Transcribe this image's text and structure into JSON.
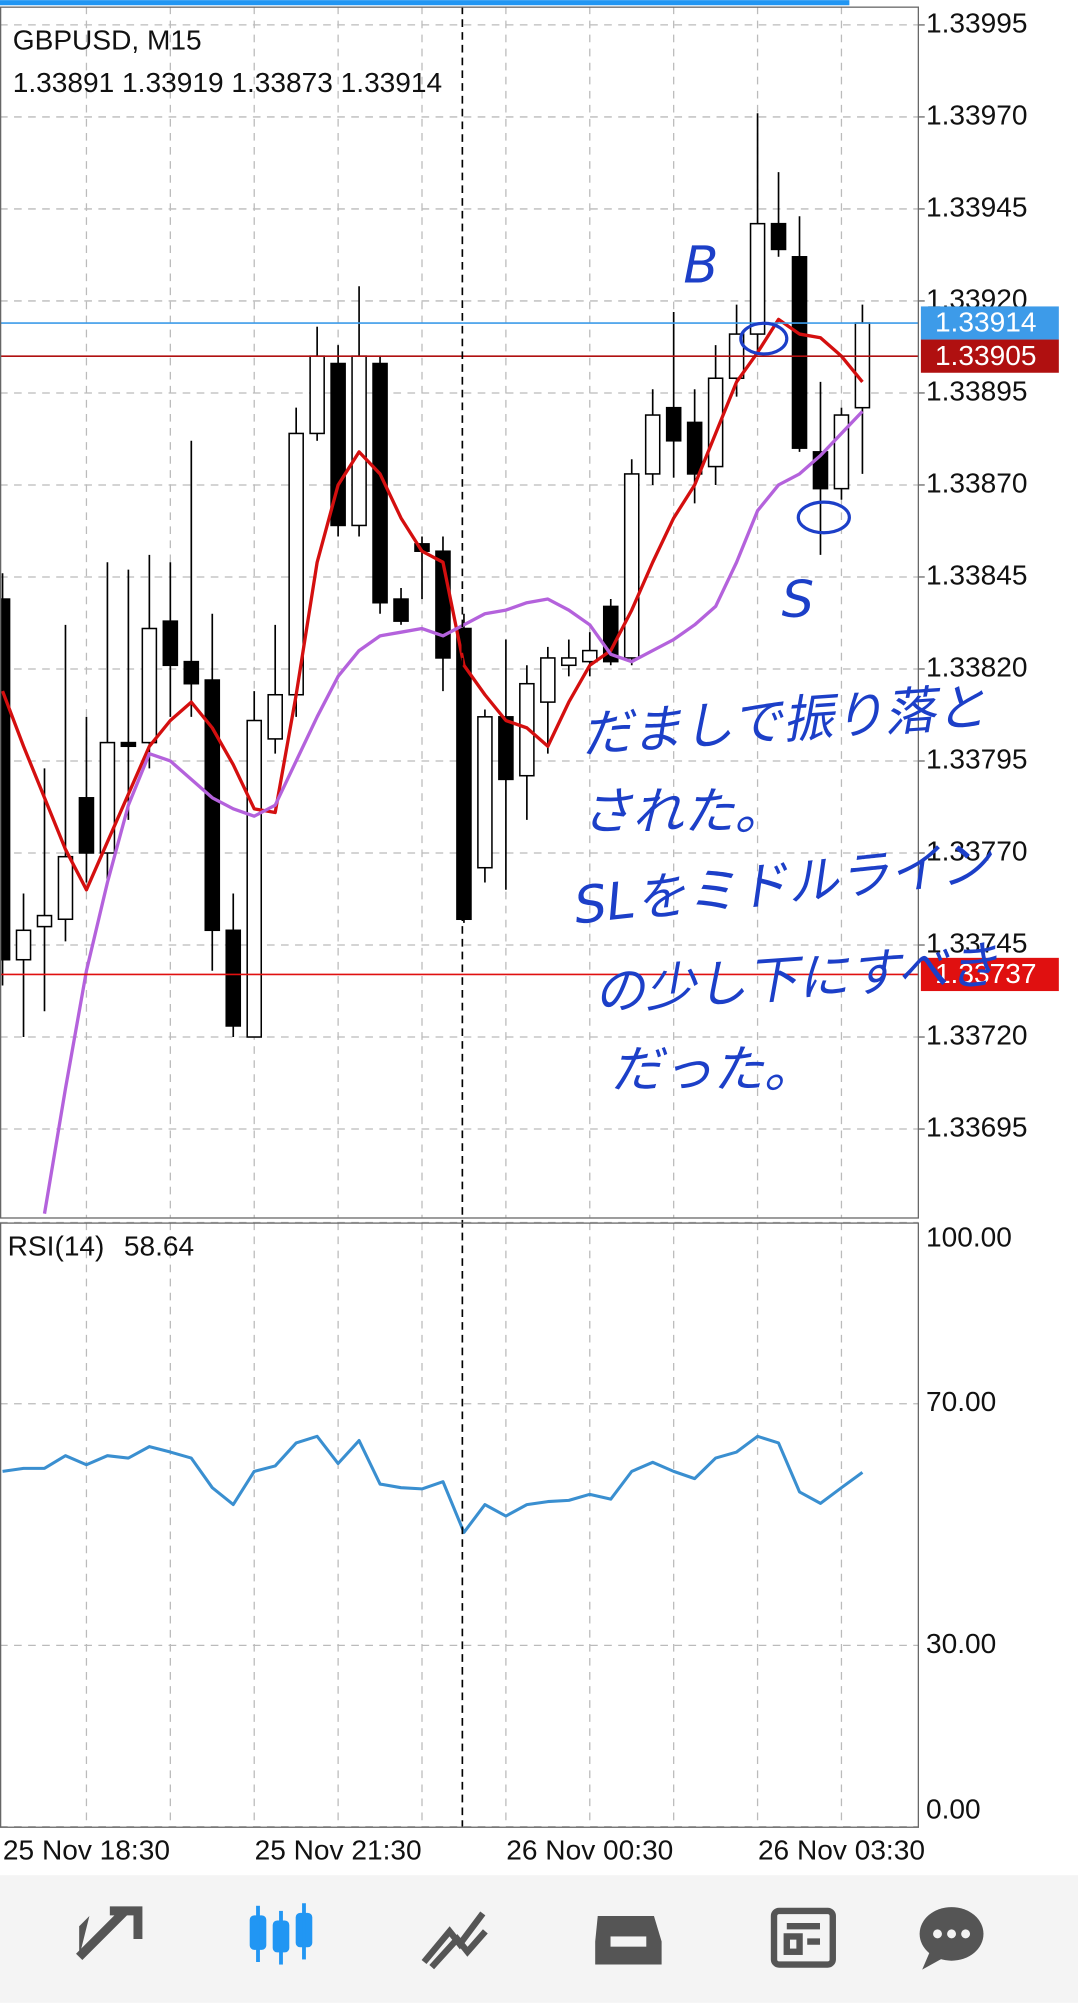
{
  "chart_data": [
    {
      "type": "candlestick",
      "title": "GBPUSD, M15",
      "subtitle": "1.33891 1.33919 1.33873 1.33914",
      "categories": [
        null,
        null,
        null,
        null,
        "25 Nov 18:30",
        null,
        null,
        null,
        null,
        null,
        null,
        null,
        null,
        null,
        null,
        null,
        "25 Nov 21:30",
        null,
        null,
        null,
        null,
        null,
        null,
        null,
        null,
        null,
        null,
        null,
        "26 Nov 00:30",
        null,
        null,
        null,
        null,
        null,
        null,
        null,
        null,
        null,
        null,
        null,
        "26 Nov 03:30",
        null
      ],
      "open": [
        1.33839,
        1.33741,
        1.3375,
        1.33752,
        1.33785,
        1.3377,
        1.338,
        1.338,
        1.33833,
        1.33822,
        1.33817,
        1.33749,
        1.3372,
        1.33801,
        1.33813,
        1.33884,
        1.33903,
        1.33859,
        1.33903,
        1.33839,
        1.33854,
        1.33852,
        1.33831,
        1.33766,
        1.33807,
        1.33791,
        1.33811,
        1.33821,
        1.33822,
        1.33837,
        1.33823,
        1.33873,
        1.33891,
        1.33887,
        1.33875,
        1.33899,
        1.33911,
        1.33941,
        1.33932,
        1.33879,
        1.33869,
        1.33891
      ],
      "high": [
        1.33846,
        1.33759,
        1.33793,
        1.33832,
        1.33807,
        1.33849,
        1.33847,
        1.33851,
        1.33849,
        1.33882,
        1.33835,
        1.33759,
        1.33814,
        1.33832,
        1.33891,
        1.33913,
        1.33908,
        1.33924,
        1.33905,
        1.33842,
        1.33856,
        1.33856,
        1.33835,
        1.33809,
        1.33828,
        1.33821,
        1.33826,
        1.33828,
        1.3383,
        1.33839,
        1.33877,
        1.33896,
        1.33917,
        1.33896,
        1.33908,
        1.33919,
        1.33971,
        1.33955,
        1.33943,
        1.33898,
        1.33891,
        1.33919
      ],
      "low": [
        1.33734,
        1.3372,
        1.33727,
        1.33746,
        1.33762,
        1.33762,
        1.33779,
        1.33793,
        1.33807,
        1.33807,
        1.33738,
        1.3372,
        1.3372,
        1.33797,
        1.33807,
        1.33882,
        1.33856,
        1.33856,
        1.33835,
        1.33832,
        1.33839,
        1.33814,
        1.33751,
        1.33762,
        1.3376,
        1.33779,
        1.33797,
        1.33818,
        1.33818,
        1.33821,
        1.33821,
        1.3387,
        1.33872,
        1.33865,
        1.3387,
        1.33894,
        1.33906,
        1.33932,
        1.33879,
        1.33851,
        1.33866,
        1.33873
      ],
      "close": [
        1.33741,
        1.33749,
        1.33753,
        1.33769,
        1.3377,
        1.338,
        1.33799,
        1.33831,
        1.33821,
        1.33816,
        1.33749,
        1.33723,
        1.33806,
        1.33813,
        1.33884,
        1.33905,
        1.33859,
        1.33905,
        1.33838,
        1.33833,
        1.33852,
        1.33823,
        1.33752,
        1.33807,
        1.3379,
        1.33816,
        1.33823,
        1.33823,
        1.33825,
        1.33822,
        1.33873,
        1.33889,
        1.33882,
        1.33873,
        1.33899,
        1.33911,
        1.33941,
        1.33934,
        1.3388,
        1.33869,
        1.33889,
        1.33914
      ],
      "up_color": "#ffffff",
      "down_color": "#000000",
      "series": [
        {
          "color": "#d40f0f",
          "values": [
            1.33814,
            1.33799,
            1.33785,
            1.33771,
            1.3376,
            1.33773,
            1.33786,
            1.33799,
            1.33806,
            1.33811,
            1.33804,
            1.33794,
            1.33782,
            1.33781,
            1.33813,
            1.33849,
            1.3387,
            1.33879,
            1.33873,
            1.33861,
            1.33852,
            1.33849,
            1.33821,
            1.33813,
            1.33806,
            1.33804,
            1.33799,
            1.33811,
            1.33821,
            1.33825,
            1.33836,
            1.33849,
            1.33861,
            1.3387,
            1.33884,
            1.33898,
            1.33906,
            1.33915,
            1.33911,
            1.3391,
            1.33905,
            1.33898
          ]
        },
        {
          "color": "#b462dc",
          "values": [
            null,
            null,
            1.33672,
            1.33706,
            1.33738,
            1.33762,
            1.33783,
            1.33797,
            1.33795,
            1.3379,
            1.33785,
            1.33782,
            1.3378,
            1.33783,
            1.33795,
            1.33807,
            1.33818,
            1.33825,
            1.33829,
            1.3383,
            1.33831,
            1.33829,
            1.33832,
            1.33835,
            1.33836,
            1.33838,
            1.33839,
            1.33836,
            1.33832,
            1.33824,
            1.33822,
            1.33825,
            1.33828,
            1.33832,
            1.33837,
            1.33849,
            1.33863,
            1.3387,
            1.33873,
            1.33878,
            1.33884,
            1.3389
          ]
        }
      ],
      "price_lines": [
        {
          "value": 1.33914,
          "color": "#3d9be9"
        },
        {
          "value": 1.33905,
          "color": "#b01010"
        },
        {
          "value": 1.33737,
          "color": "#e01010"
        }
      ],
      "ylim": [
        1.33671,
        1.34
      ],
      "yticks": [
        1.33995,
        {
          "value": 1.3397,
          "label": "1.33970"
        },
        1.33945,
        {
          "value": 1.3392,
          "label": "1.33920"
        },
        1.33895,
        {
          "value": 1.3387,
          "label": "1.33870"
        },
        1.33845,
        {
          "value": 1.3382,
          "label": "1.33820"
        },
        1.33795,
        {
          "value": 1.3377,
          "label": "1.33770"
        },
        1.33745,
        {
          "value": 1.3372,
          "label": "1.33720"
        },
        1.33695
      ],
      "grid": true,
      "annotations": [
        "B",
        "S",
        "だましで振り落と",
        "された。",
        "SLをミドルライン",
        "の少し下にすべき",
        "だった。"
      ]
    },
    {
      "type": "line",
      "title": "RSI(14)",
      "current": 58.64,
      "color": "#3a8fd0",
      "values": [
        58.8,
        59.3,
        59.3,
        61.4,
        59.9,
        61.4,
        61.0,
        62.9,
        62.0,
        61.0,
        56.1,
        53.3,
        58.8,
        59.7,
        63.5,
        64.6,
        60.1,
        63.9,
        56.7,
        56.1,
        55.9,
        57.1,
        48.7,
        53.3,
        51.4,
        53.3,
        53.8,
        54.0,
        55.0,
        54.2,
        58.8,
        60.3,
        58.8,
        57.6,
        61.0,
        62.0,
        64.6,
        63.5,
        55.4,
        53.5,
        56.1,
        58.64
      ],
      "ylim": [
        0,
        100
      ],
      "yticks": [
        {
          "value": 100,
          "label": "100.00"
        },
        {
          "value": 70,
          "label": "70.00"
        },
        {
          "value": 30,
          "label": "30.00"
        },
        {
          "value": 0,
          "label": "0.00"
        }
      ],
      "grid": true
    }
  ]
}
